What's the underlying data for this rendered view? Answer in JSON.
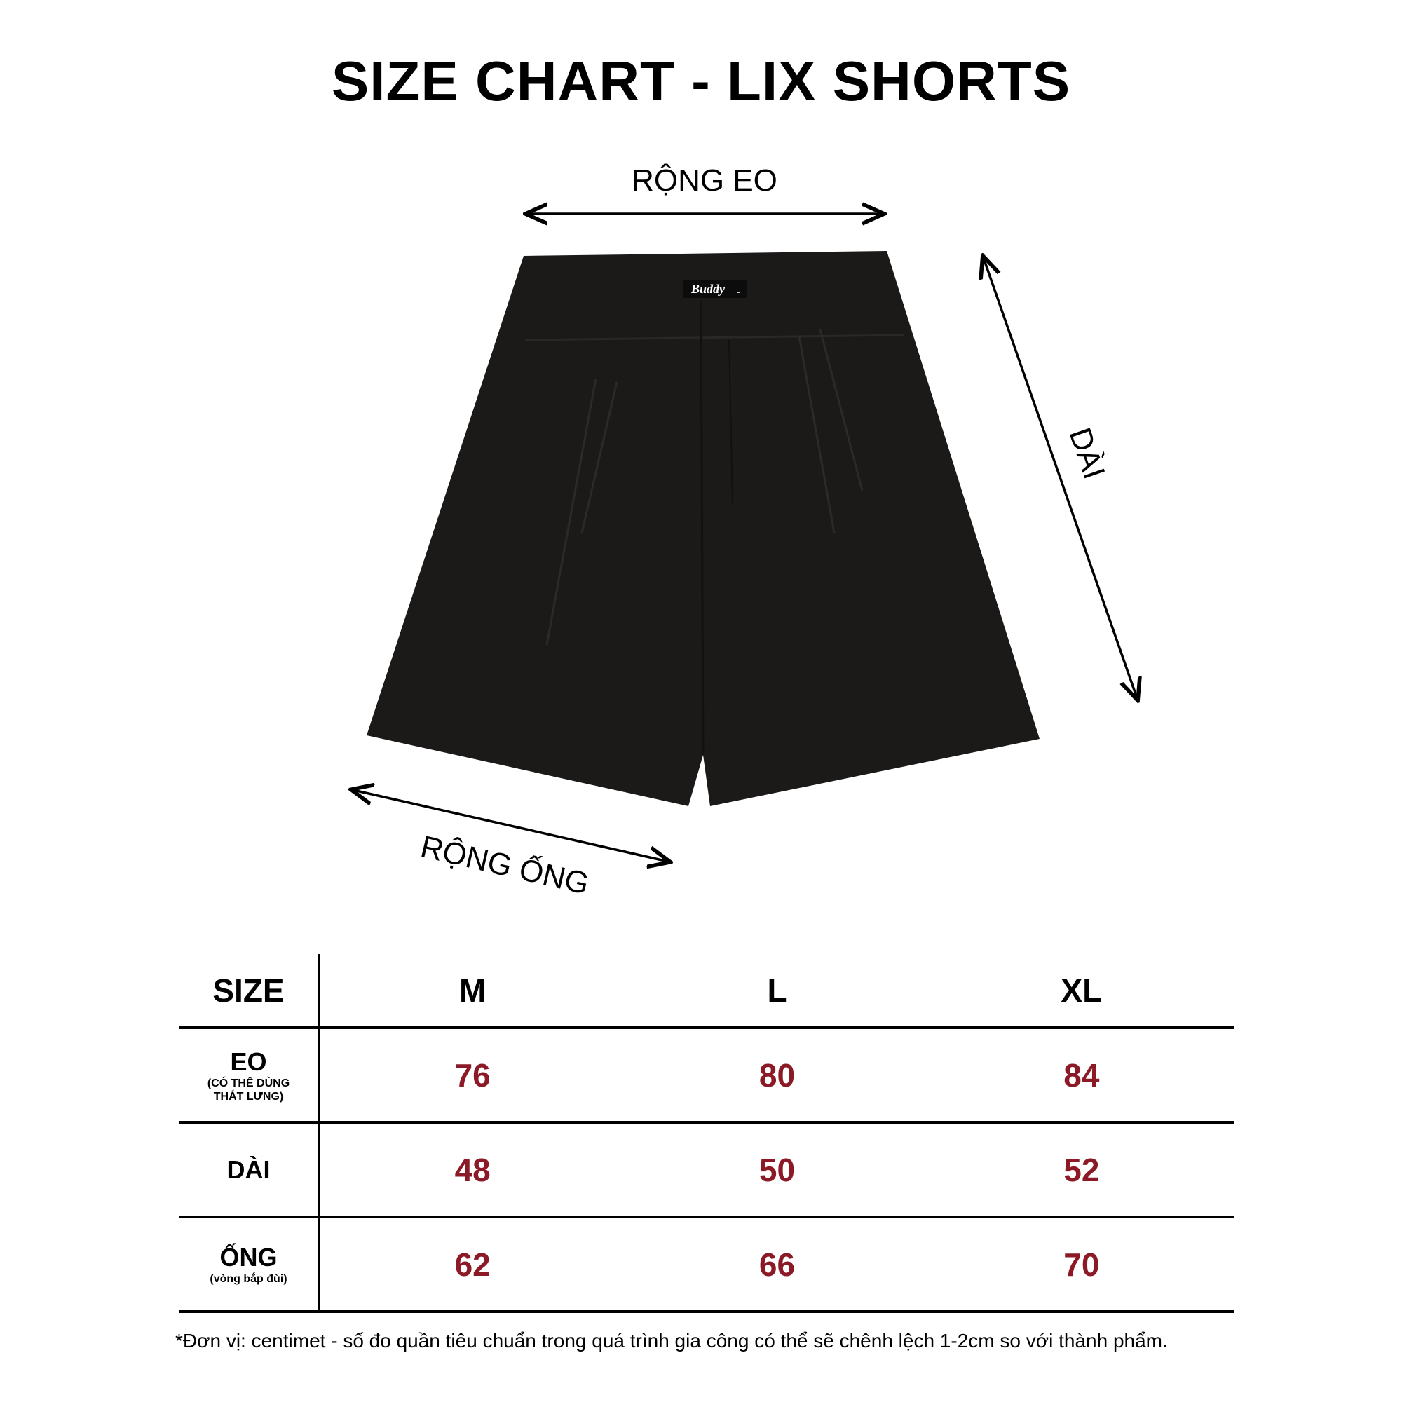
{
  "title": "SIZE CHART - LIX SHORTS",
  "diagram": {
    "waist_label": "RỘNG EO",
    "length_label": "DÀI",
    "leg_label": "RỘNG ỐNG",
    "brand_tag": "Buddy",
    "tag_size": "L",
    "garment_color": "#1c1a19"
  },
  "table": {
    "header": {
      "label": "SIZE",
      "sizes": [
        "M",
        "L",
        "XL"
      ]
    },
    "rows": [
      {
        "label": "EO",
        "sublabel": "(CÓ THỂ DÙNG THẮT LƯNG)",
        "values": [
          "76",
          "80",
          "84"
        ]
      },
      {
        "label": "DÀI",
        "sublabel": "",
        "values": [
          "48",
          "50",
          "52"
        ]
      },
      {
        "label": "ỐNG",
        "sublabel": "(vòng bắp đùi)",
        "values": [
          "62",
          "66",
          "70"
        ]
      }
    ],
    "value_color": "#8b1a26"
  },
  "footnote": "*Đơn vị: centimet -  số đo quần tiêu chuẩn trong quá trình gia công có thể sẽ chênh lệch 1-2cm so với thành phẩm."
}
